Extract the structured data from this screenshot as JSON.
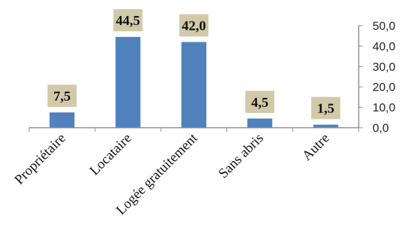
{
  "chart_data": {
    "type": "bar",
    "categories": [
      "Propriétaire",
      "Locataire",
      "Logée gratuitement",
      "Sans abris",
      "Autre"
    ],
    "values": [
      7.5,
      44.5,
      42.0,
      4.5,
      1.5
    ],
    "value_labels": [
      "7,5",
      "44,5",
      "42,0",
      "4,5",
      "1,5"
    ],
    "y_ticks": [
      "0,0",
      "10,0",
      "20,0",
      "30,0",
      "40,0",
      "50,0"
    ],
    "ylim": [
      0,
      50
    ],
    "y_axis_side": "right",
    "grid": false,
    "legend": "none",
    "title": "",
    "xlabel": "",
    "ylabel": "",
    "colors": {
      "bar": "#4F81BD",
      "label_box": "#D2C9A8",
      "axis": "#8C8C8C"
    }
  }
}
